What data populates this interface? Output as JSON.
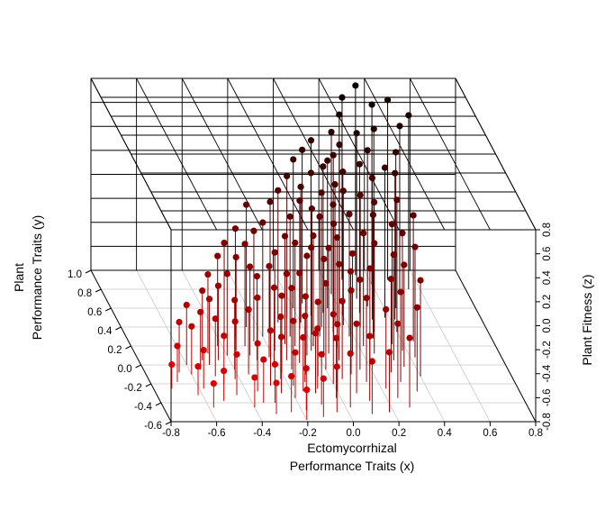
{
  "chart_data": {
    "type": "scatter",
    "subtype": "3d-scatter-with-drop-lines",
    "title": "",
    "xlabel_lines": [
      "Ectomycorrhizal",
      "Performance Traits (x)"
    ],
    "ylabel_lines": [
      "Plant",
      "Performance Traits (y)"
    ],
    "zlabel": "Plant Fitness (z)",
    "xlim": [
      -0.8,
      0.8
    ],
    "ylim": [
      -0.6,
      1.0
    ],
    "zlim": [
      -0.8,
      0.8
    ],
    "x_ticks": [
      "-0.8",
      "-0.6",
      "-0.4",
      "-0.2",
      "0.0",
      "0.2",
      "0.4",
      "0.6",
      "0.8"
    ],
    "y_ticks": [
      "-0.6",
      "-0.4",
      "-0.2",
      "0.0",
      "0.2",
      "0.4",
      "0.6",
      "0.8",
      "1.0"
    ],
    "z_ticks": [
      "-0.8",
      "-0.6",
      "-0.4",
      "-0.2",
      "0.0",
      "0.2",
      "0.4",
      "0.6",
      "0.8"
    ],
    "color_scale": {
      "low": "#ff0000",
      "high": "#000000",
      "variable": "z"
    },
    "grid": true,
    "legend": "none",
    "points": [
      [
        0.35,
        0.95,
        0.78
      ],
      [
        0.28,
        0.9,
        0.72
      ],
      [
        0.4,
        0.85,
        0.7
      ],
      [
        0.25,
        0.82,
        0.64
      ],
      [
        0.3,
        0.7,
        0.58
      ],
      [
        0.2,
        0.75,
        0.55
      ],
      [
        0.38,
        0.72,
        0.6
      ],
      [
        0.33,
        0.62,
        0.5
      ],
      [
        0.1,
        0.7,
        0.52
      ],
      [
        0.05,
        0.65,
        0.48
      ],
      [
        0.12,
        0.55,
        0.42
      ],
      [
        0.0,
        0.6,
        0.44
      ],
      [
        0.2,
        0.52,
        0.4
      ],
      [
        0.15,
        0.45,
        0.35
      ],
      [
        -0.05,
        0.5,
        0.38
      ],
      [
        0.25,
        0.4,
        0.3
      ],
      [
        0.08,
        0.4,
        0.32
      ],
      [
        -0.1,
        0.45,
        0.3
      ],
      [
        0.02,
        0.32,
        0.25
      ],
      [
        0.3,
        0.35,
        0.28
      ],
      [
        0.18,
        0.3,
        0.22
      ],
      [
        -0.15,
        0.38,
        0.26
      ],
      [
        -0.08,
        0.3,
        0.2
      ],
      [
        0.1,
        0.25,
        0.18
      ],
      [
        -0.2,
        0.3,
        0.15
      ],
      [
        0.22,
        0.2,
        0.14
      ],
      [
        0.0,
        0.2,
        0.12
      ],
      [
        -0.12,
        0.22,
        0.1
      ],
      [
        0.05,
        0.12,
        0.08
      ],
      [
        -0.25,
        0.25,
        0.12
      ],
      [
        0.15,
        0.1,
        0.05
      ],
      [
        -0.05,
        0.1,
        0.03
      ],
      [
        -0.18,
        0.15,
        0.02
      ],
      [
        0.08,
        0.05,
        0.0
      ],
      [
        -0.3,
        0.2,
        0.05
      ],
      [
        0.12,
        0.0,
        -0.02
      ],
      [
        -0.1,
        0.02,
        -0.05
      ],
      [
        -0.22,
        0.08,
        -0.04
      ],
      [
        0.0,
        -0.05,
        -0.08
      ],
      [
        -0.35,
        0.15,
        -0.02
      ],
      [
        0.1,
        -0.1,
        -0.1
      ],
      [
        -0.15,
        -0.05,
        -0.12
      ],
      [
        -0.28,
        0.05,
        -0.1
      ],
      [
        0.05,
        -0.15,
        -0.15
      ],
      [
        -0.05,
        -0.12,
        -0.18
      ],
      [
        -0.2,
        -0.08,
        -0.16
      ],
      [
        -0.4,
        0.1,
        -0.12
      ],
      [
        0.0,
        -0.2,
        -0.22
      ],
      [
        -0.12,
        -0.18,
        -0.25
      ],
      [
        -0.3,
        -0.05,
        -0.2
      ],
      [
        -0.45,
        0.05,
        -0.18
      ],
      [
        -0.08,
        -0.25,
        -0.3
      ],
      [
        -0.22,
        -0.15,
        -0.28
      ],
      [
        -0.35,
        -0.1,
        -0.26
      ],
      [
        -0.5,
        0.0,
        -0.25
      ],
      [
        -0.15,
        -0.28,
        -0.35
      ],
      [
        -0.28,
        -0.22,
        -0.34
      ],
      [
        -0.42,
        -0.15,
        -0.32
      ],
      [
        -0.55,
        -0.05,
        -0.32
      ],
      [
        -0.2,
        -0.35,
        -0.42
      ],
      [
        -0.35,
        -0.28,
        -0.4
      ],
      [
        -0.48,
        -0.2,
        -0.4
      ],
      [
        -0.6,
        -0.1,
        -0.4
      ],
      [
        -0.3,
        -0.4,
        -0.48
      ],
      [
        -0.45,
        -0.32,
        -0.46
      ],
      [
        -0.58,
        -0.25,
        -0.48
      ],
      [
        -0.68,
        -0.18,
        -0.5
      ],
      [
        -0.52,
        -0.38,
        -0.55
      ],
      [
        -0.62,
        -0.32,
        -0.56
      ],
      [
        -0.72,
        -0.25,
        -0.6
      ],
      [
        -0.4,
        -0.45,
        -0.55
      ],
      [
        -0.58,
        -0.45,
        -0.6
      ],
      [
        0.45,
        0.6,
        0.5
      ],
      [
        0.42,
        0.48,
        0.42
      ],
      [
        0.5,
        0.75,
        0.6
      ],
      [
        0.48,
        0.9,
        0.7
      ],
      [
        0.55,
        0.8,
        0.65
      ],
      [
        0.38,
        0.5,
        0.45
      ],
      [
        0.32,
        0.48,
        0.38
      ],
      [
        0.28,
        0.55,
        0.44
      ],
      [
        0.18,
        0.62,
        0.46
      ],
      [
        0.22,
        0.68,
        0.5
      ],
      [
        0.15,
        0.6,
        0.43
      ],
      [
        0.06,
        0.52,
        0.39
      ],
      [
        0.0,
        0.45,
        0.33
      ],
      [
        -0.02,
        0.38,
        0.27
      ],
      [
        0.12,
        0.35,
        0.26
      ],
      [
        0.28,
        0.28,
        0.23
      ],
      [
        0.35,
        0.22,
        0.2
      ],
      [
        0.25,
        0.12,
        0.12
      ],
      [
        0.32,
        0.05,
        0.08
      ],
      [
        0.2,
        -0.02,
        0.02
      ],
      [
        0.28,
        -0.08,
        -0.02
      ],
      [
        0.15,
        -0.18,
        -0.1
      ],
      [
        0.22,
        -0.25,
        -0.14
      ],
      [
        0.08,
        -0.3,
        -0.22
      ],
      [
        0.12,
        -0.38,
        -0.26
      ],
      [
        -0.02,
        -0.35,
        -0.3
      ],
      [
        0.02,
        -0.45,
        -0.35
      ],
      [
        -0.1,
        -0.42,
        -0.38
      ],
      [
        -0.05,
        -0.5,
        -0.42
      ],
      [
        -0.18,
        -0.48,
        -0.45
      ],
      [
        -0.25,
        -0.5,
        -0.5
      ],
      [
        -0.12,
        -0.55,
        -0.48
      ],
      [
        -0.32,
        -0.52,
        -0.54
      ],
      [
        -0.2,
        -0.58,
        -0.55
      ],
      [
        0.18,
        0.42,
        0.32
      ],
      [
        -0.25,
        0.4,
        0.22
      ],
      [
        -0.32,
        0.3,
        0.1
      ],
      [
        -0.38,
        0.25,
        0.02
      ],
      [
        -0.42,
        0.2,
        -0.05
      ],
      [
        -0.48,
        0.12,
        -0.14
      ],
      [
        -0.52,
        0.05,
        -0.22
      ],
      [
        -0.6,
        0.0,
        -0.3
      ],
      [
        -0.65,
        -0.08,
        -0.38
      ],
      [
        0.4,
        0.35,
        0.3
      ],
      [
        0.45,
        0.25,
        0.25
      ],
      [
        0.38,
        0.15,
        0.18
      ],
      [
        0.42,
        0.08,
        0.12
      ],
      [
        0.35,
        -0.02,
        0.05
      ],
      [
        0.4,
        -0.12,
        0.0
      ],
      [
        0.3,
        -0.18,
        -0.05
      ],
      [
        0.35,
        -0.28,
        -0.1
      ],
      [
        0.25,
        -0.35,
        -0.18
      ],
      [
        0.28,
        -0.45,
        -0.22
      ],
      [
        0.18,
        -0.5,
        -0.3
      ],
      [
        0.1,
        -0.52,
        -0.36
      ],
      [
        -0.08,
        0.2,
        0.06
      ],
      [
        -0.15,
        0.05,
        -0.08
      ],
      [
        0.05,
        0.3,
        0.2
      ],
      [
        -0.02,
        0.15,
        0.06
      ],
      [
        0.1,
        0.18,
        0.12
      ],
      [
        -0.22,
        -0.02,
        -0.14
      ],
      [
        -0.1,
        -0.1,
        -0.15
      ],
      [
        -0.3,
        0.1,
        -0.06
      ],
      [
        0.02,
        0.08,
        0.02
      ],
      [
        -0.18,
        -0.22,
        -0.26
      ],
      [
        -0.25,
        -0.3,
        -0.33
      ],
      [
        -0.4,
        -0.05,
        -0.22
      ],
      [
        -0.5,
        -0.12,
        -0.32
      ],
      [
        -0.35,
        -0.4,
        -0.44
      ],
      [
        -0.1,
        -0.3,
        -0.3
      ],
      [
        0.0,
        -0.28,
        -0.24
      ],
      [
        0.15,
        -0.05,
        -0.05
      ]
    ]
  }
}
